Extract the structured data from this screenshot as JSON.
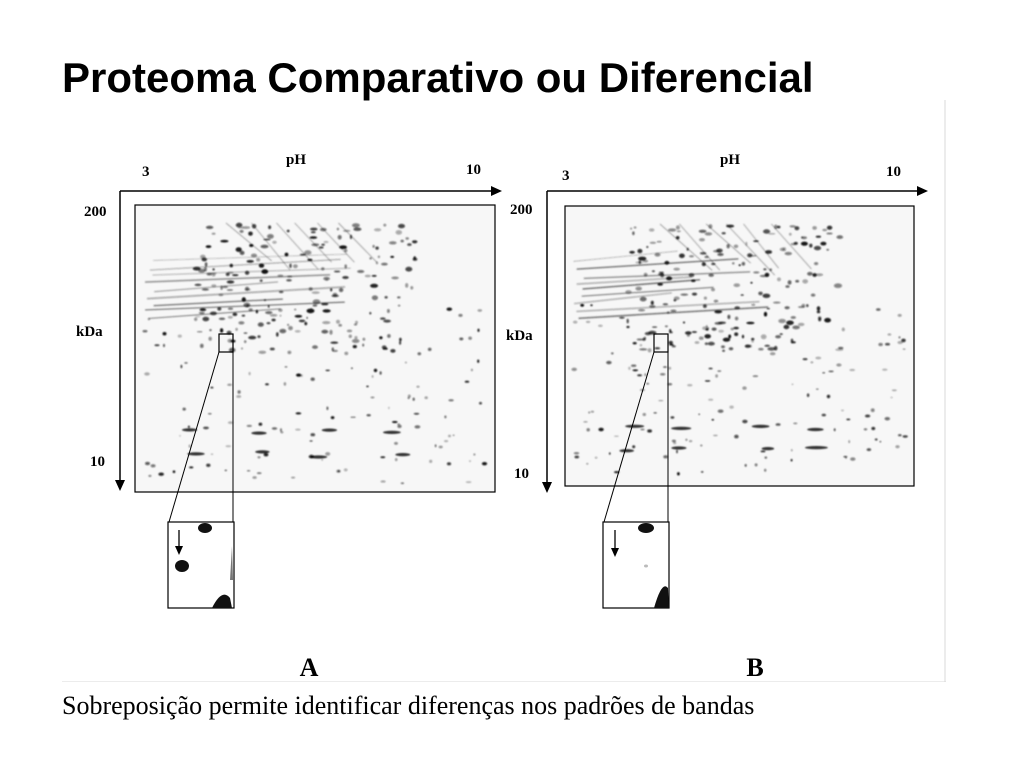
{
  "slide": {
    "title": "Proteoma Comparativo ou Diferencial",
    "caption": "Sobreposição permite identificar diferenças nos padrões de bandas"
  },
  "gels": [
    {
      "panel_label": "A",
      "x_axis": {
        "label": "pH",
        "start": "3",
        "end": "10"
      },
      "y_axis": {
        "label": "kDa",
        "top": "200",
        "bottom": "10"
      }
    },
    {
      "panel_label": "B",
      "x_axis": {
        "label": "pH",
        "start": "3",
        "end": "10"
      },
      "y_axis": {
        "label": "kDa",
        "top": "200",
        "bottom": "10"
      }
    }
  ],
  "colors": {
    "ink": "#000000",
    "gel_background": "#f7f7f7",
    "frame": "#d8d8d8"
  }
}
